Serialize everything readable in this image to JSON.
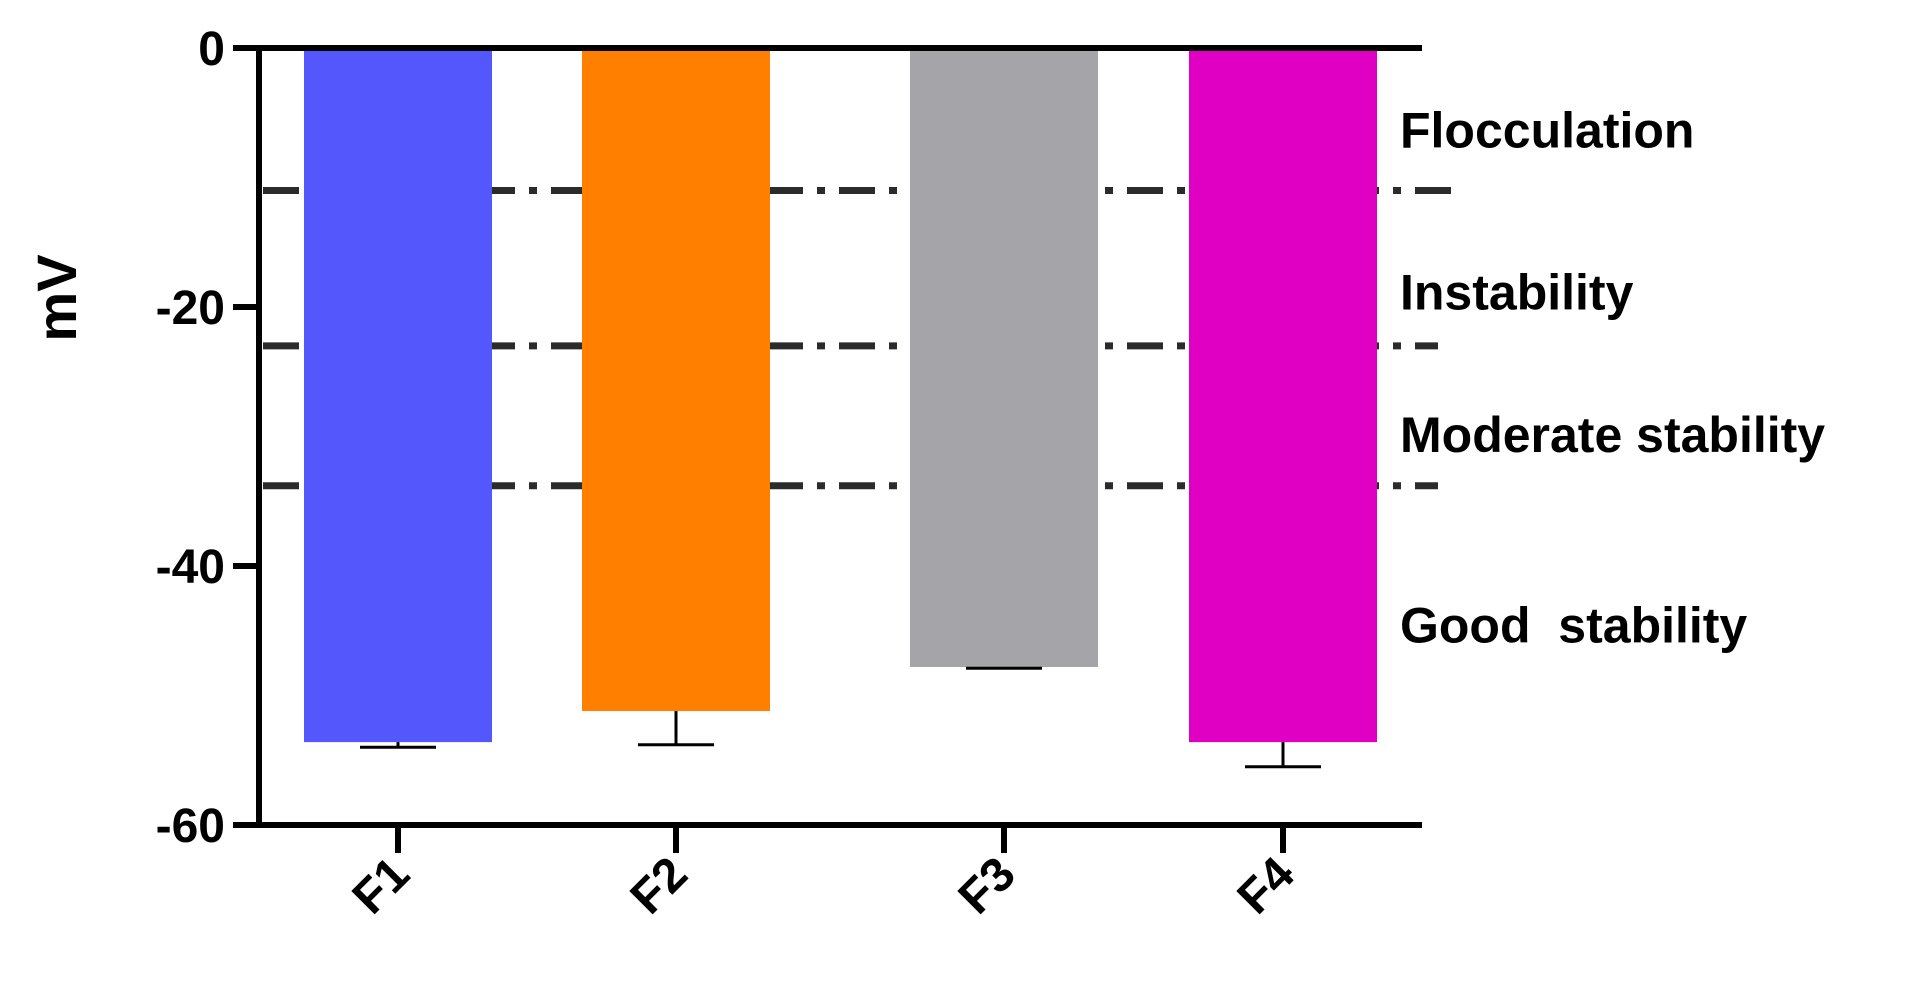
{
  "chart_data": {
    "type": "bar",
    "ylabel": "mV",
    "xlabel": "",
    "title": "",
    "ylim": [
      -60,
      0
    ],
    "yticks": [
      0,
      -20,
      -40,
      -60
    ],
    "ytick_labels": [
      "0",
      "-20",
      "-40",
      "-60"
    ],
    "categories": [
      "F1",
      "F2",
      "F3",
      "F4"
    ],
    "values": [
      -53.6,
      -51.2,
      -47.8,
      -53.6
    ],
    "error_low": [
      -54.0,
      -53.8,
      -47.9,
      -55.5
    ],
    "colors": [
      "#5457fc",
      "#ff8000",
      "#a5a4a8",
      "#e000c3"
    ],
    "grid": false,
    "reference_lines": [
      {
        "value": -11
      },
      {
        "value": -23
      },
      {
        "value": -33.8
      }
    ],
    "zones": [
      {
        "label": "Flocculation",
        "y": -6.3
      },
      {
        "label": "Instability",
        "y": -18.8
      },
      {
        "label": "Moderate stability",
        "y": -29.8
      },
      {
        "label": "Good  stability",
        "y": -44.5
      }
    ]
  }
}
